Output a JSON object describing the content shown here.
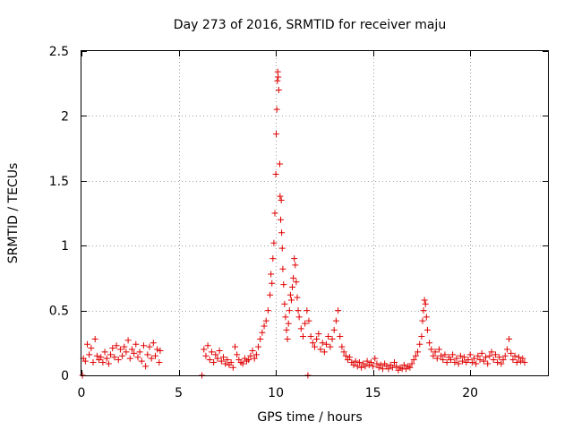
{
  "chart_data": {
    "type": "scatter",
    "title": "Day 273 of 2016, SRMTID for receiver maju",
    "xlabel": "GPS time / hours",
    "ylabel": "SRMTID / TECUs",
    "xlim": [
      0,
      24
    ],
    "ylim": [
      0,
      2.5
    ],
    "xticks": [
      0,
      5,
      10,
      15,
      20
    ],
    "xtick_labels": [
      "0",
      "5",
      "10",
      "15",
      "20"
    ],
    "yticks": [
      0,
      0.5,
      1,
      1.5,
      2,
      2.5
    ],
    "ytick_labels": [
      "0",
      "0.5",
      "1",
      "1.5",
      "2",
      "2.5"
    ],
    "grid": true,
    "marker": "plus",
    "series_color": "#e00000",
    "series": [
      {
        "name": "SRMTID",
        "points": [
          [
            0.05,
            0.0
          ],
          [
            0.1,
            0.13
          ],
          [
            0.2,
            0.11
          ],
          [
            0.3,
            0.24
          ],
          [
            0.4,
            0.16
          ],
          [
            0.5,
            0.21
          ],
          [
            0.6,
            0.1
          ],
          [
            0.7,
            0.28
          ],
          [
            0.8,
            0.15
          ],
          [
            0.9,
            0.12
          ],
          [
            1.0,
            0.14
          ],
          [
            1.1,
            0.1
          ],
          [
            1.2,
            0.18
          ],
          [
            1.3,
            0.13
          ],
          [
            1.4,
            0.09
          ],
          [
            1.5,
            0.16
          ],
          [
            1.6,
            0.21
          ],
          [
            1.7,
            0.14
          ],
          [
            1.8,
            0.23
          ],
          [
            1.9,
            0.12
          ],
          [
            2.0,
            0.2
          ],
          [
            2.1,
            0.15
          ],
          [
            2.2,
            0.22
          ],
          [
            2.3,
            0.18
          ],
          [
            2.4,
            0.27
          ],
          [
            2.5,
            0.13
          ],
          [
            2.6,
            0.2
          ],
          [
            2.7,
            0.17
          ],
          [
            2.8,
            0.24
          ],
          [
            2.9,
            0.14
          ],
          [
            3.0,
            0.18
          ],
          [
            3.1,
            0.11
          ],
          [
            3.2,
            0.23
          ],
          [
            3.3,
            0.07
          ],
          [
            3.4,
            0.16
          ],
          [
            3.5,
            0.22
          ],
          [
            3.6,
            0.13
          ],
          [
            3.7,
            0.25
          ],
          [
            3.8,
            0.15
          ],
          [
            3.9,
            0.2
          ],
          [
            4.0,
            0.1
          ],
          [
            4.05,
            0.19
          ],
          [
            6.2,
            0.0
          ],
          [
            6.3,
            0.2
          ],
          [
            6.4,
            0.15
          ],
          [
            6.5,
            0.23
          ],
          [
            6.6,
            0.12
          ],
          [
            6.7,
            0.18
          ],
          [
            6.8,
            0.1
          ],
          [
            6.9,
            0.16
          ],
          [
            7.0,
            0.13
          ],
          [
            7.1,
            0.19
          ],
          [
            7.2,
            0.11
          ],
          [
            7.3,
            0.14
          ],
          [
            7.4,
            0.09
          ],
          [
            7.5,
            0.12
          ],
          [
            7.6,
            0.08
          ],
          [
            7.7,
            0.1
          ],
          [
            7.8,
            0.06
          ],
          [
            7.9,
            0.22
          ],
          [
            8.0,
            0.16
          ],
          [
            8.1,
            0.12
          ],
          [
            8.2,
            0.1
          ],
          [
            8.3,
            0.09
          ],
          [
            8.4,
            0.13
          ],
          [
            8.5,
            0.11
          ],
          [
            8.6,
            0.12
          ],
          [
            8.7,
            0.15
          ],
          [
            8.8,
            0.19
          ],
          [
            8.9,
            0.13
          ],
          [
            9.0,
            0.16
          ],
          [
            9.1,
            0.22
          ],
          [
            9.2,
            0.28
          ],
          [
            9.3,
            0.33
          ],
          [
            9.4,
            0.38
          ],
          [
            9.5,
            0.42
          ],
          [
            9.6,
            0.5
          ],
          [
            9.7,
            0.62
          ],
          [
            9.75,
            0.78
          ],
          [
            9.8,
            0.71
          ],
          [
            9.85,
            0.9
          ],
          [
            9.9,
            1.02
          ],
          [
            9.95,
            1.25
          ],
          [
            10.0,
            1.55
          ],
          [
            10.02,
            1.86
          ],
          [
            10.05,
            2.05
          ],
          [
            10.08,
            2.27
          ],
          [
            10.1,
            2.34
          ],
          [
            10.12,
            2.3
          ],
          [
            10.15,
            2.2
          ],
          [
            10.2,
            1.63
          ],
          [
            10.22,
            1.38
          ],
          [
            10.25,
            1.2
          ],
          [
            10.28,
            1.35
          ],
          [
            10.3,
            1.1
          ],
          [
            10.33,
            0.98
          ],
          [
            10.36,
            0.82
          ],
          [
            10.4,
            0.7
          ],
          [
            10.45,
            0.55
          ],
          [
            10.5,
            0.45
          ],
          [
            10.55,
            0.35
          ],
          [
            10.6,
            0.28
          ],
          [
            10.65,
            0.4
          ],
          [
            10.7,
            0.5
          ],
          [
            10.75,
            0.62
          ],
          [
            10.8,
            0.58
          ],
          [
            10.85,
            0.68
          ],
          [
            10.9,
            0.75
          ],
          [
            10.95,
            0.9
          ],
          [
            11.0,
            0.85
          ],
          [
            11.05,
            0.72
          ],
          [
            11.1,
            0.6
          ],
          [
            11.15,
            0.5
          ],
          [
            11.2,
            0.45
          ],
          [
            11.3,
            0.36
          ],
          [
            11.4,
            0.3
          ],
          [
            11.5,
            0.4
          ],
          [
            11.6,
            0.5
          ],
          [
            11.65,
            0.0
          ],
          [
            11.7,
            0.42
          ],
          [
            11.8,
            0.3
          ],
          [
            11.9,
            0.25
          ],
          [
            12.0,
            0.22
          ],
          [
            12.1,
            0.28
          ],
          [
            12.2,
            0.32
          ],
          [
            12.3,
            0.2
          ],
          [
            12.4,
            0.25
          ],
          [
            12.5,
            0.18
          ],
          [
            12.6,
            0.24
          ],
          [
            12.7,
            0.3
          ],
          [
            12.8,
            0.22
          ],
          [
            12.9,
            0.28
          ],
          [
            13.0,
            0.35
          ],
          [
            13.1,
            0.42
          ],
          [
            13.2,
            0.5
          ],
          [
            13.3,
            0.3
          ],
          [
            13.4,
            0.22
          ],
          [
            13.5,
            0.18
          ],
          [
            13.6,
            0.15
          ],
          [
            13.7,
            0.12
          ],
          [
            13.8,
            0.14
          ],
          [
            13.9,
            0.1
          ],
          [
            14.0,
            0.08
          ],
          [
            14.1,
            0.11
          ],
          [
            14.2,
            0.07
          ],
          [
            14.3,
            0.1
          ],
          [
            14.4,
            0.06
          ],
          [
            14.5,
            0.09
          ],
          [
            14.6,
            0.07
          ],
          [
            14.7,
            0.11
          ],
          [
            14.8,
            0.08
          ],
          [
            14.9,
            0.1
          ],
          [
            15.0,
            0.07
          ],
          [
            15.1,
            0.13
          ],
          [
            15.2,
            0.09
          ],
          [
            15.3,
            0.06
          ],
          [
            15.4,
            0.08
          ],
          [
            15.5,
            0.05
          ],
          [
            15.6,
            0.09
          ],
          [
            15.7,
            0.07
          ],
          [
            15.8,
            0.05
          ],
          [
            15.9,
            0.08
          ],
          [
            16.0,
            0.06
          ],
          [
            16.1,
            0.1
          ],
          [
            16.2,
            0.07
          ],
          [
            16.3,
            0.04
          ],
          [
            16.4,
            0.06
          ],
          [
            16.5,
            0.05
          ],
          [
            16.6,
            0.08
          ],
          [
            16.7,
            0.05
          ],
          [
            16.8,
            0.07
          ],
          [
            16.9,
            0.06
          ],
          [
            17.0,
            0.09
          ],
          [
            17.1,
            0.12
          ],
          [
            17.2,
            0.15
          ],
          [
            17.3,
            0.18
          ],
          [
            17.4,
            0.24
          ],
          [
            17.5,
            0.3
          ],
          [
            17.55,
            0.42
          ],
          [
            17.6,
            0.5
          ],
          [
            17.65,
            0.58
          ],
          [
            17.7,
            0.55
          ],
          [
            17.75,
            0.45
          ],
          [
            17.8,
            0.35
          ],
          [
            17.9,
            0.25
          ],
          [
            18.0,
            0.2
          ],
          [
            18.1,
            0.15
          ],
          [
            18.2,
            0.18
          ],
          [
            18.3,
            0.13
          ],
          [
            18.4,
            0.2
          ],
          [
            18.5,
            0.15
          ],
          [
            18.6,
            0.12
          ],
          [
            18.7,
            0.16
          ],
          [
            18.8,
            0.1
          ],
          [
            18.9,
            0.14
          ],
          [
            19.0,
            0.12
          ],
          [
            19.1,
            0.16
          ],
          [
            19.2,
            0.1
          ],
          [
            19.3,
            0.13
          ],
          [
            19.4,
            0.09
          ],
          [
            19.5,
            0.15
          ],
          [
            19.6,
            0.11
          ],
          [
            19.7,
            0.14
          ],
          [
            19.8,
            0.1
          ],
          [
            19.9,
            0.12
          ],
          [
            20.0,
            0.16
          ],
          [
            20.1,
            0.1
          ],
          [
            20.2,
            0.13
          ],
          [
            20.3,
            0.09
          ],
          [
            20.4,
            0.15
          ],
          [
            20.5,
            0.12
          ],
          [
            20.6,
            0.17
          ],
          [
            20.7,
            0.11
          ],
          [
            20.8,
            0.14
          ],
          [
            20.9,
            0.09
          ],
          [
            21.0,
            0.15
          ],
          [
            21.1,
            0.18
          ],
          [
            21.2,
            0.12
          ],
          [
            21.3,
            0.16
          ],
          [
            21.4,
            0.1
          ],
          [
            21.5,
            0.14
          ],
          [
            21.6,
            0.09
          ],
          [
            21.7,
            0.12
          ],
          [
            21.8,
            0.15
          ],
          [
            21.9,
            0.2
          ],
          [
            22.0,
            0.28
          ],
          [
            22.1,
            0.17
          ],
          [
            22.2,
            0.12
          ],
          [
            22.3,
            0.15
          ],
          [
            22.4,
            0.1
          ],
          [
            22.5,
            0.14
          ],
          [
            22.6,
            0.11
          ],
          [
            22.7,
            0.13
          ],
          [
            22.8,
            0.1
          ]
        ]
      }
    ]
  }
}
